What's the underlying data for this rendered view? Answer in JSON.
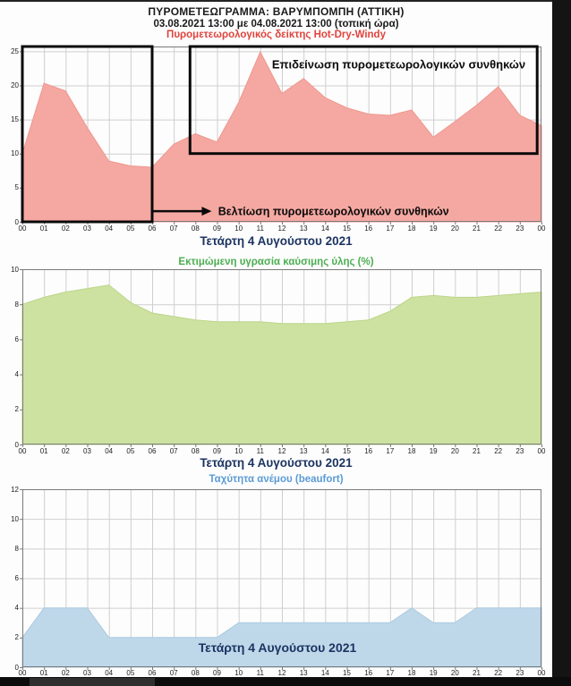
{
  "header": {
    "title_line1": "ΠΥΡΟΜΕΤΕΩΓΡΑΜΜΑ: ΒΑΡΥΜΠΟΜΠΗ (ΑΤΤΙΚΗ)",
    "title_line2": "03.08.2021 13:00 με 04.08.2021 13:00 (τοπική ώρα)"
  },
  "colors": {
    "grid": "#cfcfcf",
    "frame": "#7a7a7a",
    "tick_text": "#222222",
    "date_text": "#1c3461",
    "annotation": "#0a0a0a"
  },
  "chart_data": [
    {
      "name": "hot-dry-windy",
      "type": "area",
      "title": "Πυρομετεωρολογικός δείκτης Hot-Dry-Windy",
      "title_color": "#e0433c",
      "fill": "#f5a8a2",
      "edge": "#ee968f",
      "xlabel": "Τετάρτη 4 Αυγούστου 2021",
      "xlabel_position": "below",
      "ylim": [
        0,
        25.7
      ],
      "yticks": [
        0,
        5,
        10,
        15,
        20,
        25
      ],
      "x": [
        0,
        1,
        2,
        3,
        4,
        5,
        6,
        7,
        8,
        9,
        10,
        11,
        12,
        13,
        14,
        15,
        16,
        17,
        18,
        19,
        20,
        21,
        22,
        23,
        24
      ],
      "x_ticklabels": [
        "00",
        "01",
        "02",
        "03",
        "04",
        "05",
        "06",
        "07",
        "08",
        "09",
        "10",
        "11",
        "12",
        "13",
        "14",
        "15",
        "16",
        "17",
        "18",
        "19",
        "20",
        "21",
        "22",
        "23",
        "00"
      ],
      "values": [
        10.0,
        20.3,
        19.2,
        13.8,
        8.9,
        8.2,
        8.0,
        11.4,
        12.9,
        11.7,
        17.5,
        24.9,
        18.8,
        21.0,
        18.2,
        16.7,
        15.8,
        15.6,
        16.4,
        12.4,
        14.7,
        17.1,
        19.8,
        15.6,
        14.1
      ],
      "annotations": {
        "boxes": [
          {
            "name": "improvement-box",
            "x0": 0,
            "x1": 6,
            "y0": 0,
            "y1": 25.7,
            "label": ""
          },
          {
            "name": "worsening-box",
            "x0": 7.75,
            "x1": 23.8,
            "y0": 10,
            "y1": 25.7,
            "label": "Επιδείνωση πυρομετεωρολογικών συνθηκών",
            "label_x": 17.4,
            "label_y": 22.5
          }
        ],
        "arrow": {
          "x0": 6,
          "x1": 8.75,
          "y": 1.55,
          "label": "Βελτίωση πυρομετεωρολογικών συνθηκών",
          "label_x": 9.05
        }
      }
    },
    {
      "name": "fuel-moisture",
      "type": "area",
      "title": "Εκτιμώμενη υγρασία καύσιμης ύλης (%)",
      "title_color": "#4cae52",
      "fill": "#cde2a0",
      "edge": "#bcd58a",
      "xlabel": "Τετάρτη 4 Αυγούστου 2021",
      "xlabel_position": "below",
      "ylim": [
        0,
        10
      ],
      "yticks": [
        0,
        2,
        4,
        6,
        8,
        10
      ],
      "x": [
        0,
        1,
        2,
        3,
        4,
        5,
        6,
        7,
        8,
        9,
        10,
        11,
        12,
        13,
        14,
        15,
        16,
        17,
        18,
        19,
        20,
        21,
        22,
        23,
        24
      ],
      "x_ticklabels": [
        "00",
        "01",
        "02",
        "03",
        "04",
        "05",
        "06",
        "07",
        "08",
        "09",
        "10",
        "11",
        "12",
        "13",
        "14",
        "15",
        "16",
        "17",
        "18",
        "19",
        "20",
        "21",
        "22",
        "23",
        "00"
      ],
      "values": [
        8.0,
        8.4,
        8.7,
        8.9,
        9.1,
        8.1,
        7.5,
        7.3,
        7.1,
        7.0,
        7.0,
        7.0,
        6.9,
        6.9,
        6.9,
        7.0,
        7.1,
        7.6,
        8.4,
        8.5,
        8.4,
        8.4,
        8.5,
        8.6,
        8.7
      ]
    },
    {
      "name": "wind-speed",
      "type": "area",
      "title": "Ταχύτητα ανέμου (beaufort)",
      "title_color": "#5b9bd5",
      "fill": "#bed8ea",
      "edge": "#aac9df",
      "xlabel": "Τετάρτη 4 Αυγούστου 2021",
      "xlabel_position": "inside",
      "ylim": [
        0,
        12
      ],
      "yticks": [
        0,
        2,
        4,
        6,
        8,
        10,
        12
      ],
      "x": [
        0,
        1,
        2,
        3,
        4,
        5,
        6,
        7,
        8,
        9,
        10,
        11,
        12,
        13,
        14,
        15,
        16,
        17,
        18,
        19,
        20,
        21,
        22,
        23,
        24
      ],
      "x_ticklabels": [
        "00",
        "01",
        "02",
        "03",
        "04",
        "05",
        "06",
        "07",
        "08",
        "09",
        "10",
        "11",
        "12",
        "13",
        "14",
        "15",
        "16",
        "17",
        "18",
        "19",
        "20",
        "21",
        "22",
        "23",
        "00"
      ],
      "values": [
        2,
        4,
        4,
        4,
        2,
        2,
        2,
        2,
        2,
        2,
        3,
        3,
        3,
        3,
        3,
        3,
        3,
        3,
        4,
        3,
        3,
        4,
        4,
        4,
        4
      ]
    }
  ]
}
